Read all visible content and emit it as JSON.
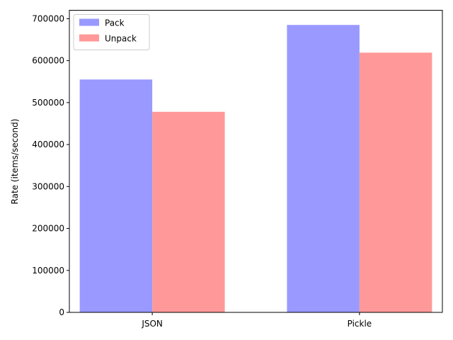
{
  "chart_data": {
    "type": "bar",
    "title": "",
    "xlabel": "",
    "ylabel": "Rate (items/second)",
    "categories": [
      "JSON",
      "Pickle"
    ],
    "series": [
      {
        "name": "Pack",
        "values": [
          555000,
          685000
        ],
        "color": "#9999ff"
      },
      {
        "name": "Unpack",
        "values": [
          478000,
          619000
        ],
        "color": "#ff9999"
      }
    ],
    "ylim": [
      0,
      720000
    ],
    "yticks": [
      0,
      100000,
      200000,
      300000,
      400000,
      500000,
      600000,
      700000
    ],
    "ytick_labels": [
      "0",
      "100000",
      "200000",
      "300000",
      "400000",
      "500000",
      "600000",
      "700000"
    ],
    "grid": false,
    "legend_position": "top-left"
  }
}
